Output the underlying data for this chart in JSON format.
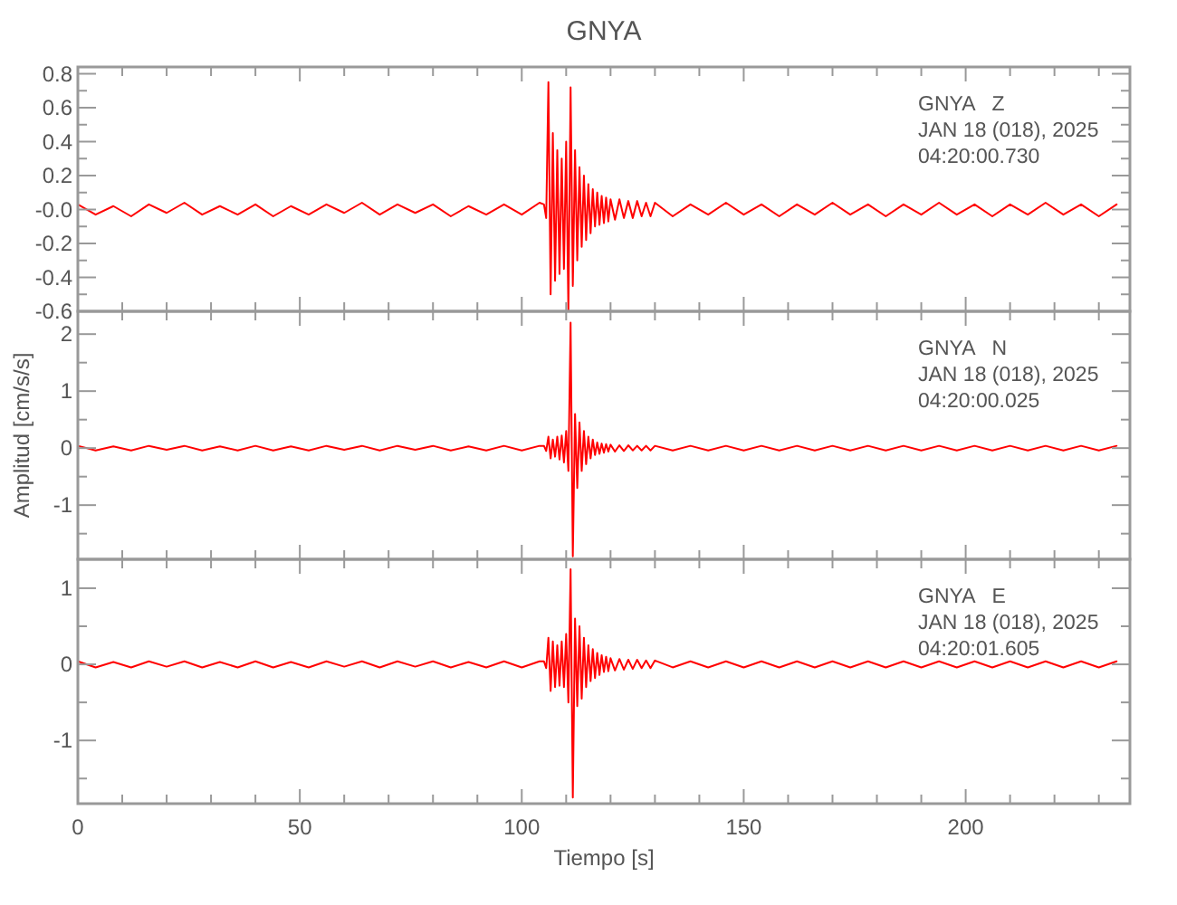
{
  "chart_data": [
    {
      "type": "line",
      "title": "GNYA",
      "annotations": [
        "GNYA   Z",
        "JAN 18 (018), 2025",
        "04:20:00.730"
      ],
      "tick_labels": "y",
      "grid": false,
      "x": [
        0,
        4,
        8,
        12,
        16,
        20,
        24,
        28,
        32,
        36,
        40,
        44,
        48,
        52,
        56,
        60,
        64,
        68,
        72,
        76,
        80,
        84,
        88,
        92,
        96,
        100,
        104,
        105,
        105.5,
        106,
        106.5,
        107,
        107.5,
        108,
        108.5,
        109,
        109.5,
        110,
        110.5,
        111,
        111.5,
        112,
        112.5,
        113,
        113.5,
        114,
        114.5,
        115,
        115.5,
        116,
        116.5,
        117,
        117.5,
        118,
        118.5,
        119,
        119.5,
        120,
        121,
        122,
        123,
        124,
        125,
        126,
        127,
        128,
        129,
        130,
        134,
        138,
        142,
        146,
        150,
        154,
        158,
        162,
        166,
        170,
        174,
        178,
        182,
        186,
        190,
        194,
        198,
        202,
        206,
        210,
        214,
        218,
        222,
        226,
        230,
        234
      ],
      "xlim": [
        0,
        237
      ],
      "xticks": [
        0,
        {
          "value": 10,
          "label": null
        },
        {
          "value": 20,
          "label": null
        },
        {
          "value": 30,
          "label": null
        },
        {
          "value": 40,
          "label": null
        },
        50,
        {
          "value": 60,
          "label": null
        },
        {
          "value": 70,
          "label": null
        },
        {
          "value": 80,
          "label": null
        },
        {
          "value": 90,
          "label": null
        },
        100,
        {
          "value": 110,
          "label": null
        },
        {
          "value": 120,
          "label": null
        },
        {
          "value": 130,
          "label": null
        },
        {
          "value": 140,
          "label": null
        },
        150,
        {
          "value": 160,
          "label": null
        },
        {
          "value": 170,
          "label": null
        },
        {
          "value": 180,
          "label": null
        },
        {
          "value": 190,
          "label": null
        },
        200,
        {
          "value": 210,
          "label": null
        },
        {
          "value": 220,
          "label": null
        },
        {
          "value": 230,
          "label": null
        }
      ],
      "ylim": [
        -0.6,
        0.84
      ],
      "yticks": [
        -0.6,
        {
          "value": -0.5,
          "label": null
        },
        -0.4,
        {
          "value": -0.3,
          "label": null
        },
        -0.2,
        {
          "value": -0.1,
          "label": null
        },
        {
          "value": 0,
          "label": "-0.0"
        },
        {
          "value": 0.1,
          "label": null
        },
        0.2,
        {
          "value": 0.3,
          "label": null
        },
        0.4,
        {
          "value": 0.5,
          "label": null
        },
        0.6,
        {
          "value": 0.7,
          "label": null
        },
        0.8
      ],
      "series": [
        {
          "color": "#ff0000",
          "values": [
            0.03,
            -0.03,
            0.02,
            -0.04,
            0.03,
            -0.02,
            0.04,
            -0.03,
            0.02,
            -0.03,
            0.03,
            -0.04,
            0.02,
            -0.03,
            0.03,
            -0.02,
            0.04,
            -0.03,
            0.03,
            -0.02,
            0.03,
            -0.04,
            0.02,
            -0.03,
            0.03,
            -0.03,
            0.04,
            0.03,
            -0.05,
            0.75,
            -0.5,
            0.45,
            -0.42,
            0.35,
            -0.38,
            0.3,
            -0.35,
            0.4,
            -0.6,
            0.72,
            -0.45,
            0.35,
            -0.3,
            0.25,
            -0.22,
            0.2,
            -0.18,
            0.15,
            -0.14,
            0.12,
            -0.1,
            0.1,
            -0.09,
            0.08,
            -0.08,
            0.07,
            -0.07,
            0.06,
            -0.06,
            0.06,
            -0.05,
            0.05,
            -0.05,
            0.05,
            -0.04,
            0.04,
            -0.04,
            0.04,
            -0.04,
            0.03,
            -0.03,
            0.04,
            -0.03,
            0.03,
            -0.04,
            0.03,
            -0.03,
            0.04,
            -0.03,
            0.03,
            -0.04,
            0.03,
            -0.03,
            0.04,
            -0.03,
            0.03,
            -0.04,
            0.03,
            -0.03,
            0.04,
            -0.03,
            0.03,
            -0.04,
            0.03
          ]
        }
      ]
    },
    {
      "type": "line",
      "ylabel": "Amplitud [cm/s/s]",
      "annotations": [
        "GNYA   N",
        "JAN 18 (018), 2025",
        "04:20:00.025"
      ],
      "tick_labels": "y",
      "grid": false,
      "x": [
        0,
        4,
        8,
        12,
        16,
        20,
        24,
        28,
        32,
        36,
        40,
        44,
        48,
        52,
        56,
        60,
        64,
        68,
        72,
        76,
        80,
        84,
        88,
        92,
        96,
        100,
        104,
        105,
        105.5,
        106,
        106.5,
        107,
        107.5,
        108,
        108.5,
        109,
        109.5,
        110,
        110.5,
        111,
        111.5,
        112,
        112.5,
        113,
        113.5,
        114,
        114.5,
        115,
        115.5,
        116,
        116.5,
        117,
        117.5,
        118,
        118.5,
        119,
        119.5,
        120,
        121,
        122,
        123,
        124,
        125,
        126,
        127,
        128,
        129,
        130,
        134,
        138,
        142,
        146,
        150,
        154,
        158,
        162,
        166,
        170,
        174,
        178,
        182,
        186,
        190,
        194,
        198,
        202,
        206,
        210,
        214,
        218,
        222,
        226,
        230,
        234
      ],
      "xlim": [
        0,
        237
      ],
      "xticks": [
        0,
        {
          "value": 10,
          "label": null
        },
        {
          "value": 20,
          "label": null
        },
        {
          "value": 30,
          "label": null
        },
        {
          "value": 40,
          "label": null
        },
        50,
        {
          "value": 60,
          "label": null
        },
        {
          "value": 70,
          "label": null
        },
        {
          "value": 80,
          "label": null
        },
        {
          "value": 90,
          "label": null
        },
        100,
        {
          "value": 110,
          "label": null
        },
        {
          "value": 120,
          "label": null
        },
        {
          "value": 130,
          "label": null
        },
        {
          "value": 140,
          "label": null
        },
        150,
        {
          "value": 160,
          "label": null
        },
        {
          "value": 170,
          "label": null
        },
        {
          "value": 180,
          "label": null
        },
        {
          "value": 190,
          "label": null
        },
        200,
        {
          "value": 210,
          "label": null
        },
        {
          "value": 220,
          "label": null
        },
        {
          "value": 230,
          "label": null
        }
      ],
      "ylim": [
        -1.95,
        2.4
      ],
      "yticks": [
        {
          "value": -1.5,
          "label": null
        },
        -1,
        {
          "value": -0.5,
          "label": null
        },
        0,
        {
          "value": 0.5,
          "label": null
        },
        1,
        {
          "value": 1.5,
          "label": null
        },
        2
      ],
      "series": [
        {
          "color": "#ff0000",
          "values": [
            0.04,
            -0.04,
            0.03,
            -0.04,
            0.04,
            -0.03,
            0.04,
            -0.04,
            0.03,
            -0.04,
            0.04,
            -0.04,
            0.03,
            -0.04,
            0.04,
            -0.03,
            0.04,
            -0.04,
            0.04,
            -0.03,
            0.04,
            -0.04,
            0.03,
            -0.04,
            0.04,
            -0.04,
            0.04,
            0.04,
            -0.05,
            0.2,
            -0.18,
            0.15,
            -0.15,
            0.2,
            -0.2,
            0.22,
            -0.25,
            0.3,
            -0.4,
            2.2,
            -1.9,
            0.6,
            -0.7,
            0.45,
            -0.4,
            0.3,
            -0.28,
            0.2,
            -0.18,
            0.15,
            -0.12,
            0.1,
            -0.1,
            0.08,
            -0.08,
            0.07,
            -0.06,
            0.06,
            -0.06,
            0.05,
            -0.05,
            0.05,
            -0.04,
            0.04,
            -0.04,
            0.04,
            -0.04,
            0.04,
            -0.04,
            0.04,
            -0.04,
            0.04,
            -0.04,
            0.04,
            -0.04,
            0.04,
            -0.04,
            0.04,
            -0.04,
            0.04,
            -0.04,
            0.04,
            -0.04,
            0.04,
            -0.04,
            0.04,
            -0.04,
            0.04,
            -0.04,
            0.04,
            -0.04,
            0.04,
            -0.04,
            0.04
          ]
        }
      ]
    },
    {
      "type": "line",
      "xlabel": "Tiempo [s]",
      "annotations": [
        "GNYA   E",
        "JAN 18 (018), 2025",
        "04:20:01.605"
      ],
      "grid": false,
      "x": [
        0,
        4,
        8,
        12,
        16,
        20,
        24,
        28,
        32,
        36,
        40,
        44,
        48,
        52,
        56,
        60,
        64,
        68,
        72,
        76,
        80,
        84,
        88,
        92,
        96,
        100,
        104,
        105,
        105.5,
        106,
        106.5,
        107,
        107.5,
        108,
        108.5,
        109,
        109.5,
        110,
        110.5,
        111,
        111.5,
        112,
        112.5,
        113,
        113.5,
        114,
        114.5,
        115,
        115.5,
        116,
        116.5,
        117,
        117.5,
        118,
        118.5,
        119,
        119.5,
        120,
        121,
        122,
        123,
        124,
        125,
        126,
        127,
        128,
        129,
        130,
        134,
        138,
        142,
        146,
        150,
        154,
        158,
        162,
        166,
        170,
        174,
        178,
        182,
        186,
        190,
        194,
        198,
        202,
        206,
        210,
        214,
        218,
        222,
        226,
        230,
        234
      ],
      "xlim": [
        0,
        237
      ],
      "xticks": [
        0,
        {
          "value": 10,
          "label": null
        },
        {
          "value": 20,
          "label": null
        },
        {
          "value": 30,
          "label": null
        },
        {
          "value": 40,
          "label": null
        },
        50,
        {
          "value": 60,
          "label": null
        },
        {
          "value": 70,
          "label": null
        },
        {
          "value": 80,
          "label": null
        },
        {
          "value": 90,
          "label": null
        },
        100,
        {
          "value": 110,
          "label": null
        },
        {
          "value": 120,
          "label": null
        },
        {
          "value": 130,
          "label": null
        },
        {
          "value": 140,
          "label": null
        },
        150,
        {
          "value": 160,
          "label": null
        },
        {
          "value": 170,
          "label": null
        },
        {
          "value": 180,
          "label": null
        },
        {
          "value": 190,
          "label": null
        },
        200,
        {
          "value": 210,
          "label": null
        },
        {
          "value": 220,
          "label": null
        },
        {
          "value": 230,
          "label": null
        }
      ],
      "ylim": [
        -1.83,
        1.38
      ],
      "yticks": [
        {
          "value": -1.5,
          "label": null
        },
        -1,
        {
          "value": -0.5,
          "label": null
        },
        0,
        {
          "value": 0.5,
          "label": null
        },
        1
      ],
      "series": [
        {
          "color": "#ff0000",
          "values": [
            0.04,
            -0.04,
            0.03,
            -0.04,
            0.04,
            -0.03,
            0.04,
            -0.04,
            0.03,
            -0.04,
            0.04,
            -0.04,
            0.03,
            -0.04,
            0.04,
            -0.03,
            0.04,
            -0.04,
            0.04,
            -0.03,
            0.04,
            -0.04,
            0.03,
            -0.04,
            0.04,
            -0.04,
            0.04,
            0.04,
            -0.05,
            0.35,
            -0.35,
            0.3,
            -0.3,
            0.25,
            -0.28,
            0.3,
            -0.3,
            0.4,
            -0.5,
            1.25,
            -1.75,
            0.6,
            -0.55,
            0.5,
            -0.45,
            0.35,
            -0.3,
            0.25,
            -0.22,
            0.2,
            -0.18,
            0.15,
            -0.14,
            0.12,
            -0.1,
            0.1,
            -0.09,
            0.08,
            -0.08,
            0.07,
            -0.07,
            0.06,
            -0.06,
            0.06,
            -0.05,
            0.05,
            -0.05,
            0.05,
            -0.04,
            0.04,
            -0.04,
            0.04,
            -0.04,
            0.04,
            -0.04,
            0.04,
            -0.04,
            0.04,
            -0.04,
            0.04,
            -0.04,
            0.04,
            -0.04,
            0.04,
            -0.04,
            0.04,
            -0.04,
            0.04,
            -0.04,
            0.04,
            -0.04,
            0.04,
            -0.04,
            0.04
          ]
        }
      ]
    }
  ]
}
